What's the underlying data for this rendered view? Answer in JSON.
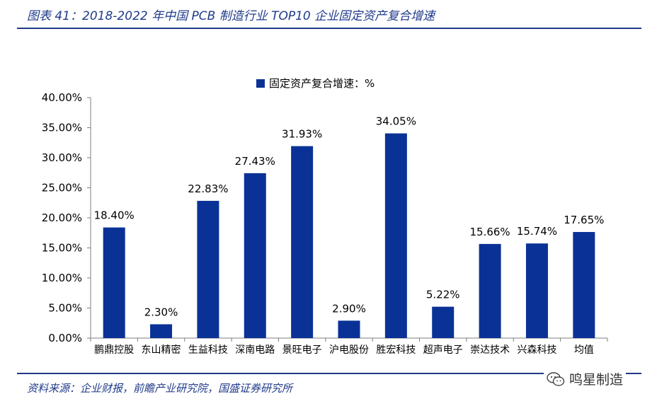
{
  "figure": {
    "title": "图表 41：2018-2022 年中国 PCB 制造行业 TOP10 企业固定资产复合增速",
    "source": "资料来源：企业财报，前瞻产业研究院，国盛证券研究所"
  },
  "watermark": {
    "text": "鸣星制造",
    "icon": "wechat-icon"
  },
  "colors": {
    "bar": "#0a3296",
    "accent": "#1f3a8a"
  },
  "chart_data": {
    "type": "bar",
    "categories": [
      "鹏鼎控股",
      "东山精密",
      "生益科技",
      "深南电路",
      "景旺电子",
      "沪电股份",
      "胜宏科技",
      "超声电子",
      "崇达技术",
      "兴森科技",
      "均值"
    ],
    "series": [
      {
        "name": "固定资产复合增速：%",
        "values": [
          18.4,
          2.3,
          22.83,
          27.43,
          31.93,
          2.9,
          34.05,
          5.22,
          15.66,
          15.74,
          17.65
        ],
        "labels": [
          "18.40%",
          "2.30%",
          "22.83%",
          "27.43%",
          "31.93%",
          "2.90%",
          "34.05%",
          "5.22%",
          "15.66%",
          "15.74%",
          "17.65%"
        ]
      }
    ],
    "yticks": [
      "0.00%",
      "5.00%",
      "10.00%",
      "15.00%",
      "20.00%",
      "25.00%",
      "30.00%",
      "35.00%",
      "40.00%"
    ],
    "ylim": [
      0,
      40
    ],
    "legend_position": "top-center",
    "grid": false,
    "title": "",
    "xlabel": "",
    "ylabel": ""
  }
}
